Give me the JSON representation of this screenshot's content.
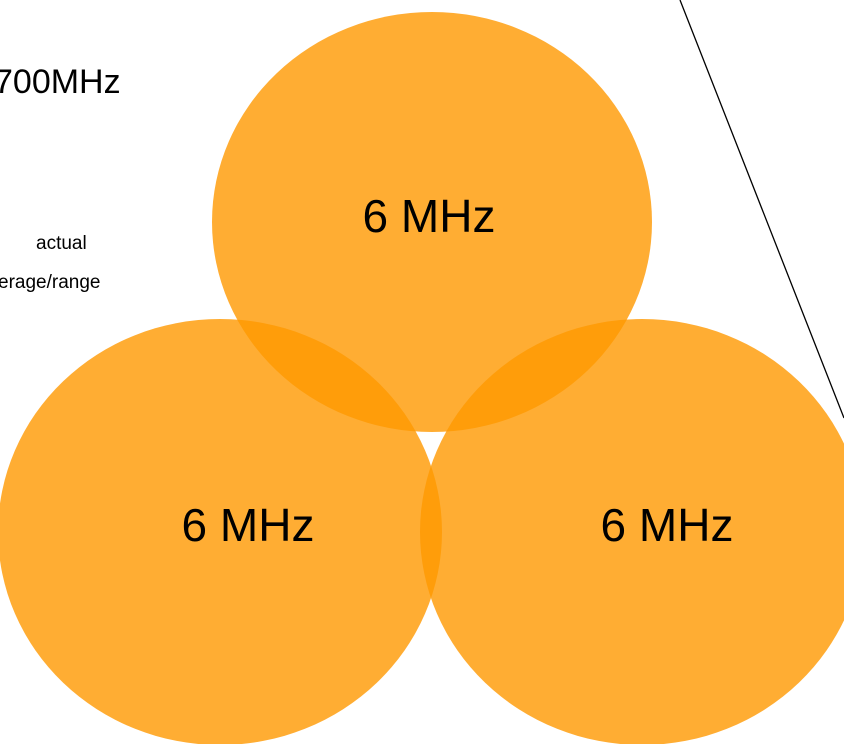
{
  "title": "700MHz",
  "note": {
    "line1": "actual",
    "line2": "erage/range"
  },
  "circles": [
    {
      "label": "6 MHz"
    },
    {
      "label": "6 MHz"
    },
    {
      "label": "6 MHz"
    }
  ],
  "colors": {
    "circle_fill": "#FF9900",
    "circle_opacity": 0.8,
    "line": "#000000",
    "background": "#FFFFFF"
  }
}
